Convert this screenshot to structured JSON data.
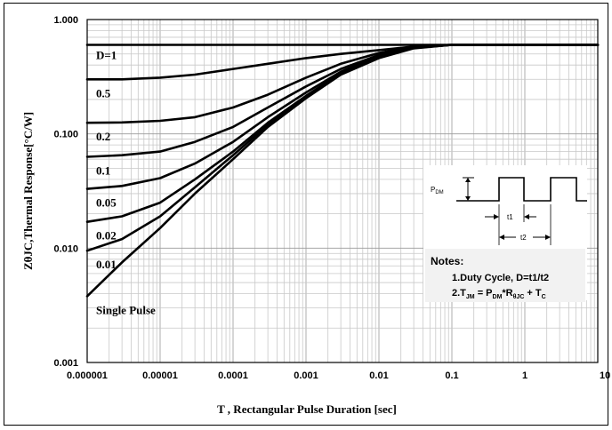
{
  "chart_data": {
    "type": "line",
    "title": "",
    "xlabel": "T , Rectangular Pulse Duration [sec]",
    "ylabel": "ZθJC,Thermal Response[°C/W]",
    "xscale": "log",
    "yscale": "log",
    "xlim": [
      1e-06,
      10
    ],
    "ylim": [
      0.001,
      1
    ],
    "grid": true,
    "x_tick_labels": [
      "0.000001",
      "0.00001",
      "0.0001",
      "0.001",
      "0.01",
      "0.1",
      "1",
      "10"
    ],
    "y_tick_labels": [
      "1.000",
      "0.100",
      "0.010",
      "0.001"
    ],
    "series": [
      {
        "name": "D=1",
        "points": [
          [
            1e-06,
            0.6
          ],
          [
            10,
            0.6
          ]
        ]
      },
      {
        "name": "0.5",
        "points": [
          [
            1e-06,
            0.3
          ],
          [
            3e-06,
            0.3
          ],
          [
            1e-05,
            0.31
          ],
          [
            3e-05,
            0.33
          ],
          [
            0.0001,
            0.37
          ],
          [
            0.0003,
            0.41
          ],
          [
            0.001,
            0.46
          ],
          [
            0.003,
            0.5
          ],
          [
            0.01,
            0.54
          ],
          [
            0.03,
            0.58
          ],
          [
            0.1,
            0.6
          ],
          [
            10,
            0.6
          ]
        ]
      },
      {
        "name": "0.2",
        "points": [
          [
            1e-06,
            0.125
          ],
          [
            3e-06,
            0.126
          ],
          [
            1e-05,
            0.13
          ],
          [
            3e-05,
            0.14
          ],
          [
            0.0001,
            0.17
          ],
          [
            0.0003,
            0.22
          ],
          [
            0.001,
            0.31
          ],
          [
            0.003,
            0.41
          ],
          [
            0.01,
            0.51
          ],
          [
            0.03,
            0.58
          ],
          [
            0.1,
            0.6
          ],
          [
            10,
            0.6
          ]
        ]
      },
      {
        "name": "0.1",
        "points": [
          [
            1e-06,
            0.063
          ],
          [
            3e-06,
            0.065
          ],
          [
            1e-05,
            0.07
          ],
          [
            3e-05,
            0.085
          ],
          [
            0.0001,
            0.115
          ],
          [
            0.0003,
            0.17
          ],
          [
            0.001,
            0.26
          ],
          [
            0.003,
            0.37
          ],
          [
            0.01,
            0.49
          ],
          [
            0.03,
            0.575
          ],
          [
            0.1,
            0.6
          ],
          [
            10,
            0.6
          ]
        ]
      },
      {
        "name": "0.05",
        "points": [
          [
            1e-06,
            0.033
          ],
          [
            3e-06,
            0.035
          ],
          [
            1e-05,
            0.041
          ],
          [
            3e-05,
            0.055
          ],
          [
            0.0001,
            0.085
          ],
          [
            0.0003,
            0.14
          ],
          [
            0.001,
            0.23
          ],
          [
            0.003,
            0.35
          ],
          [
            0.01,
            0.48
          ],
          [
            0.03,
            0.57
          ],
          [
            0.1,
            0.6
          ],
          [
            10,
            0.6
          ]
        ]
      },
      {
        "name": "0.02",
        "points": [
          [
            1e-06,
            0.017
          ],
          [
            3e-06,
            0.019
          ],
          [
            1e-05,
            0.025
          ],
          [
            3e-05,
            0.04
          ],
          [
            0.0001,
            0.07
          ],
          [
            0.0003,
            0.125
          ],
          [
            0.001,
            0.215
          ],
          [
            0.003,
            0.34
          ],
          [
            0.01,
            0.47
          ],
          [
            0.03,
            0.565
          ],
          [
            0.1,
            0.6
          ],
          [
            10,
            0.6
          ]
        ]
      },
      {
        "name": "0.01",
        "points": [
          [
            1e-06,
            0.0095
          ],
          [
            3e-06,
            0.012
          ],
          [
            1e-05,
            0.019
          ],
          [
            3e-05,
            0.034
          ],
          [
            0.0001,
            0.065
          ],
          [
            0.0003,
            0.12
          ],
          [
            0.001,
            0.21
          ],
          [
            0.003,
            0.335
          ],
          [
            0.01,
            0.47
          ],
          [
            0.03,
            0.565
          ],
          [
            0.1,
            0.6
          ],
          [
            10,
            0.6
          ]
        ]
      },
      {
        "name": "Single Pulse",
        "points": [
          [
            1e-06,
            0.0038
          ],
          [
            3e-06,
            0.0075
          ],
          [
            1e-05,
            0.015
          ],
          [
            3e-05,
            0.03
          ],
          [
            0.0001,
            0.06
          ],
          [
            0.0003,
            0.115
          ],
          [
            0.001,
            0.205
          ],
          [
            0.003,
            0.33
          ],
          [
            0.01,
            0.46
          ],
          [
            0.03,
            0.56
          ],
          [
            0.1,
            0.6
          ],
          [
            10,
            0.6
          ]
        ]
      }
    ],
    "series_labels": [
      "D=1",
      "0.5",
      "0.2",
      "0.1",
      "0.05",
      "0.02",
      "0.01",
      "Single Pulse"
    ],
    "inset": {
      "pdm_label": "P",
      "pdm_sub": "DM",
      "t1_label": "t1",
      "t2_label": "t2",
      "notes_title": "Notes:",
      "note1": "1.Duty  Cycle, D=t1/t2",
      "note2": {
        "a": "2.T",
        "b": "JM",
        "c": " = P",
        "d": "DM",
        "e": "*R",
        "f": "θJC",
        "g": " + T",
        "h": "C"
      }
    }
  }
}
